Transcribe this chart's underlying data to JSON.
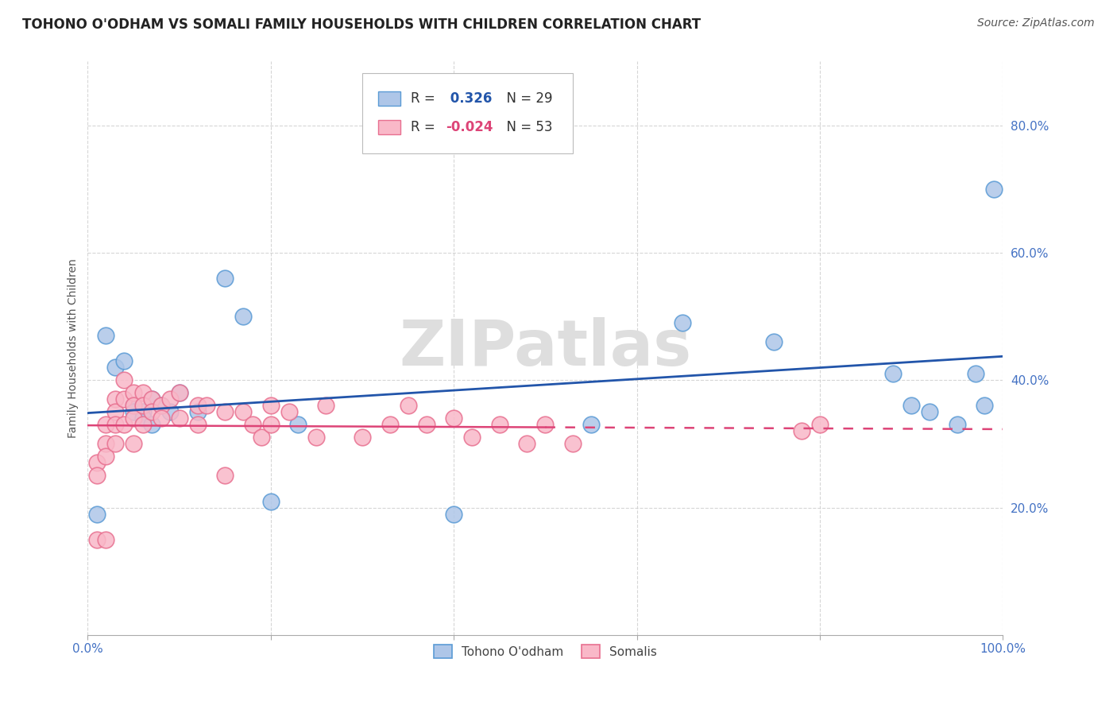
{
  "title": "TOHONO O'ODHAM VS SOMALI FAMILY HOUSEHOLDS WITH CHILDREN CORRELATION CHART",
  "source": "Source: ZipAtlas.com",
  "ylabel": "Family Households with Children",
  "watermark": "ZIPatlas",
  "xlim": [
    0,
    100
  ],
  "ylim": [
    0,
    90
  ],
  "yticks": [
    20,
    40,
    60,
    80
  ],
  "yticklabels": [
    "20.0%",
    "40.0%",
    "60.0%",
    "80.0%"
  ],
  "blue_R": 0.326,
  "blue_N": 29,
  "pink_R": -0.024,
  "pink_N": 53,
  "legend_labels": [
    "Tohono O'odham",
    "Somalis"
  ],
  "blue_fill_color": "#AEC6E8",
  "pink_fill_color": "#F9B8C8",
  "blue_edge_color": "#5B9BD5",
  "pink_edge_color": "#E87090",
  "blue_line_color": "#2255AA",
  "pink_line_color": "#DD4477",
  "background_color": "#FFFFFF",
  "grid_color": "#CCCCCC",
  "title_color": "#222222",
  "tick_color": "#4472C4",
  "watermark_color": "#DEDEDE",
  "blue_scatter_x": [
    1,
    2,
    3,
    4,
    5,
    5,
    6,
    6,
    7,
    7,
    8,
    9,
    10,
    12,
    15,
    17,
    20,
    23,
    40,
    55,
    65,
    75,
    88,
    90,
    92,
    95,
    97,
    98,
    99
  ],
  "blue_scatter_y": [
    19,
    47,
    42,
    43,
    36,
    35,
    35,
    34,
    33,
    37,
    36,
    35,
    38,
    35,
    56,
    50,
    21,
    33,
    19,
    33,
    49,
    46,
    41,
    36,
    35,
    33,
    41,
    36,
    70
  ],
  "pink_scatter_x": [
    1,
    1,
    1,
    2,
    2,
    2,
    2,
    3,
    3,
    3,
    3,
    4,
    4,
    4,
    5,
    5,
    5,
    5,
    6,
    6,
    6,
    7,
    7,
    8,
    8,
    9,
    10,
    10,
    12,
    12,
    13,
    15,
    15,
    17,
    18,
    19,
    20,
    20,
    22,
    25,
    26,
    30,
    33,
    35,
    37,
    40,
    42,
    45,
    48,
    50,
    53,
    78,
    80
  ],
  "pink_scatter_y": [
    27,
    25,
    15,
    33,
    30,
    28,
    15,
    37,
    35,
    33,
    30,
    40,
    37,
    33,
    38,
    36,
    34,
    30,
    38,
    36,
    33,
    37,
    35,
    36,
    34,
    37,
    38,
    34,
    36,
    33,
    36,
    35,
    25,
    35,
    33,
    31,
    36,
    33,
    35,
    31,
    36,
    31,
    33,
    36,
    33,
    34,
    31,
    33,
    30,
    33,
    30,
    32,
    33
  ],
  "title_fontsize": 12,
  "axis_label_fontsize": 10,
  "tick_fontsize": 11,
  "source_fontsize": 10
}
